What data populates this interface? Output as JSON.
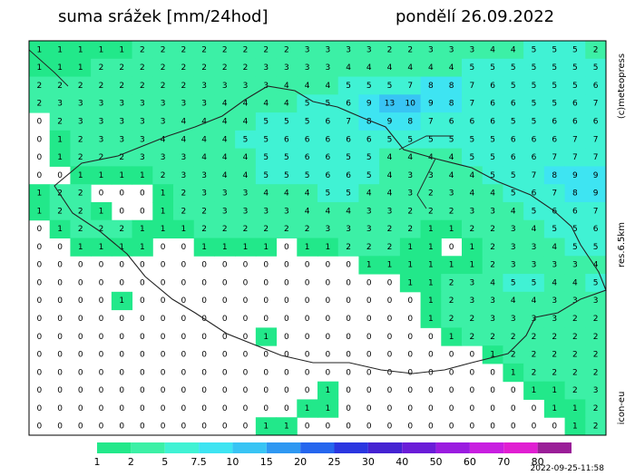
{
  "header": {
    "title": "suma srážek [mm/24hod]",
    "date": "pondělí 26.09.2022"
  },
  "side_labels": {
    "copyright": "(c)meteopress",
    "resolution": "res.6.5km",
    "model": "icon-eu"
  },
  "timestamp": "2022-09-25-11:58",
  "legend": {
    "thresholds": [
      1,
      2,
      5,
      7.5,
      10,
      15,
      20,
      25,
      30,
      40,
      50,
      60,
      70,
      80
    ],
    "colors": [
      "#22e88a",
      "#3cf0a6",
      "#40f2d4",
      "#3ee4f2",
      "#38c4f4",
      "#2e98f2",
      "#2566ee",
      "#2a36e0",
      "#4422d2",
      "#6a1cd8",
      "#9a1ce0",
      "#c81ee0",
      "#e01ed2",
      "#9a1e98"
    ]
  },
  "grid": {
    "rows": [
      [
        1,
        1,
        1,
        1,
        1,
        2,
        2,
        2,
        2,
        2,
        2,
        2,
        2,
        3,
        3,
        3,
        3,
        2,
        2,
        3,
        3,
        3,
        4,
        4,
        5,
        5,
        5,
        2
      ],
      [
        1,
        1,
        1,
        2,
        2,
        2,
        2,
        2,
        2,
        2,
        2,
        3,
        3,
        3,
        3,
        4,
        4,
        4,
        4,
        4,
        4,
        5,
        5,
        5,
        5,
        5,
        5,
        5
      ],
      [
        2,
        2,
        2,
        2,
        2,
        2,
        2,
        2,
        3,
        3,
        3,
        3,
        4,
        4,
        4,
        5,
        5,
        5,
        7,
        8,
        8,
        7,
        6,
        5,
        5,
        5,
        5,
        6
      ],
      [
        2,
        3,
        3,
        3,
        3,
        3,
        3,
        3,
        3,
        4,
        4,
        4,
        4,
        5,
        5,
        6,
        9,
        13,
        10,
        9,
        8,
        7,
        6,
        6,
        5,
        5,
        6,
        7
      ],
      [
        0,
        2,
        3,
        3,
        3,
        3,
        3,
        4,
        4,
        4,
        4,
        5,
        5,
        5,
        6,
        7,
        8,
        9,
        8,
        7,
        6,
        6,
        6,
        5,
        5,
        6,
        6,
        6
      ],
      [
        0,
        1,
        2,
        3,
        3,
        3,
        4,
        4,
        4,
        4,
        5,
        5,
        6,
        6,
        6,
        6,
        6,
        5,
        5,
        5,
        5,
        5,
        5,
        6,
        6,
        6,
        7,
        7
      ],
      [
        0,
        1,
        2,
        2,
        2,
        3,
        3,
        3,
        4,
        4,
        4,
        5,
        5,
        6,
        6,
        5,
        5,
        4,
        4,
        4,
        4,
        5,
        5,
        6,
        6,
        7,
        7,
        7
      ],
      [
        0,
        0,
        1,
        1,
        1,
        1,
        2,
        3,
        3,
        4,
        4,
        5,
        5,
        5,
        6,
        6,
        5,
        4,
        3,
        3,
        4,
        4,
        5,
        5,
        7,
        8,
        9,
        9
      ],
      [
        1,
        2,
        2,
        0,
        0,
        0,
        1,
        2,
        3,
        3,
        3,
        4,
        4,
        4,
        5,
        5,
        4,
        4,
        3,
        2,
        3,
        4,
        4,
        5,
        6,
        7,
        8,
        9
      ],
      [
        1,
        2,
        2,
        1,
        0,
        0,
        1,
        2,
        2,
        3,
        3,
        3,
        3,
        4,
        4,
        4,
        3,
        3,
        2,
        2,
        2,
        3,
        3,
        4,
        5,
        6,
        6,
        7
      ],
      [
        0,
        1,
        2,
        2,
        2,
        1,
        1,
        1,
        2,
        2,
        2,
        2,
        2,
        2,
        3,
        3,
        3,
        2,
        2,
        1,
        1,
        2,
        2,
        3,
        4,
        5,
        5,
        6
      ],
      [
        0,
        0,
        1,
        1,
        1,
        1,
        0,
        0,
        1,
        1,
        1,
        1,
        0,
        1,
        1,
        2,
        2,
        2,
        1,
        1,
        0,
        1,
        2,
        3,
        3,
        4,
        5,
        5
      ],
      [
        0,
        0,
        0,
        0,
        0,
        0,
        0,
        0,
        0,
        0,
        0,
        0,
        0,
        0,
        0,
        0,
        1,
        1,
        1,
        1,
        1,
        1,
        2,
        3,
        3,
        3,
        3,
        4
      ],
      [
        0,
        0,
        0,
        0,
        0,
        0,
        0,
        0,
        0,
        0,
        0,
        0,
        0,
        0,
        0,
        0,
        0,
        0,
        1,
        1,
        2,
        3,
        4,
        5,
        5,
        4,
        4,
        5
      ],
      [
        0,
        0,
        0,
        0,
        1,
        0,
        0,
        0,
        0,
        0,
        0,
        0,
        0,
        0,
        0,
        0,
        0,
        0,
        0,
        1,
        2,
        3,
        3,
        4,
        4,
        3,
        3,
        3
      ],
      [
        0,
        0,
        0,
        0,
        0,
        0,
        0,
        0,
        0,
        0,
        0,
        0,
        0,
        0,
        0,
        0,
        0,
        0,
        0,
        1,
        2,
        2,
        3,
        3,
        3,
        3,
        2,
        2
      ],
      [
        0,
        0,
        0,
        0,
        0,
        0,
        0,
        0,
        0,
        0,
        0,
        1,
        0,
        0,
        0,
        0,
        0,
        0,
        0,
        0,
        1,
        2,
        2,
        2,
        2,
        2,
        2,
        2
      ],
      [
        0,
        0,
        0,
        0,
        0,
        0,
        0,
        0,
        0,
        0,
        0,
        0,
        0,
        0,
        0,
        0,
        0,
        0,
        0,
        0,
        0,
        0,
        1,
        2,
        2,
        2,
        2,
        2
      ],
      [
        0,
        0,
        0,
        0,
        0,
        0,
        0,
        0,
        0,
        0,
        0,
        0,
        0,
        0,
        0,
        0,
        0,
        0,
        0,
        0,
        0,
        0,
        0,
        1,
        2,
        2,
        2,
        2
      ],
      [
        0,
        0,
        0,
        0,
        0,
        0,
        0,
        0,
        0,
        0,
        0,
        0,
        0,
        0,
        1,
        0,
        0,
        0,
        0,
        0,
        0,
        0,
        0,
        0,
        1,
        1,
        2,
        3
      ],
      [
        0,
        0,
        0,
        0,
        0,
        0,
        0,
        0,
        0,
        0,
        0,
        0,
        0,
        1,
        1,
        0,
        0,
        0,
        0,
        0,
        0,
        0,
        0,
        0,
        0,
        1,
        1,
        2
      ],
      [
        0,
        0,
        0,
        0,
        0,
        0,
        0,
        0,
        0,
        0,
        0,
        1,
        1,
        0,
        0,
        0,
        0,
        0,
        0,
        0,
        0,
        0,
        0,
        0,
        0,
        0,
        1,
        2
      ]
    ]
  }
}
